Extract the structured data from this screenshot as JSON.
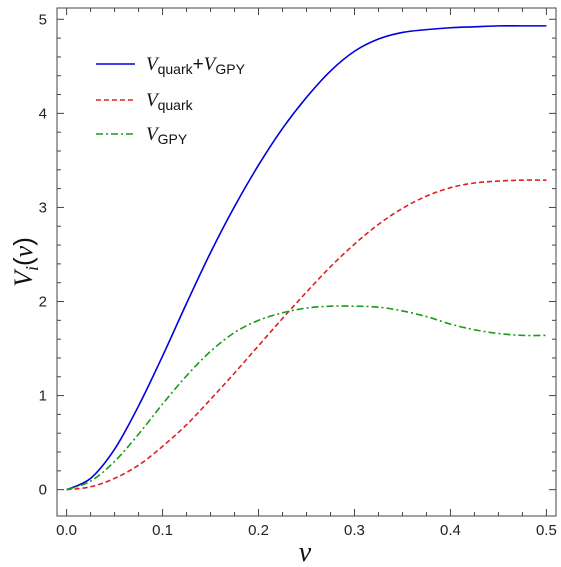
{
  "chart_data": {
    "type": "line",
    "xlabel": "v",
    "ylabel": "V_i(v)",
    "xlim": [
      -0.01,
      0.51
    ],
    "ylim": [
      -0.28,
      5.12
    ],
    "xticks": [
      "0.0",
      "0.1",
      "0.2",
      "0.3",
      "0.4",
      "0.5"
    ],
    "xtick_values": [
      0.0,
      0.1,
      0.2,
      0.3,
      0.4,
      0.5
    ],
    "yticks": [
      "0",
      "1",
      "2",
      "3",
      "4",
      "5"
    ],
    "ytick_values": [
      0,
      1,
      2,
      3,
      4,
      5
    ],
    "legend_position": "top-left",
    "grid": false,
    "x": [
      0.0,
      0.025,
      0.05,
      0.075,
      0.1,
      0.125,
      0.15,
      0.175,
      0.2,
      0.225,
      0.25,
      0.275,
      0.3,
      0.325,
      0.35,
      0.375,
      0.4,
      0.425,
      0.45,
      0.475,
      0.5
    ],
    "series": [
      {
        "label_main": "V",
        "label_sub": "quark",
        "label_plus": "+",
        "label_main2": "V",
        "label_sub2": "GPY",
        "color": "#0000dd",
        "dash": "solid",
        "values": [
          0.0,
          0.12,
          0.43,
          0.89,
          1.42,
          1.98,
          2.52,
          3.01,
          3.45,
          3.84,
          4.17,
          4.45,
          4.66,
          4.79,
          4.86,
          4.89,
          4.91,
          4.92,
          4.93,
          4.93,
          4.93
        ]
      },
      {
        "label_main": "V",
        "label_sub": "quark",
        "color": "#e02020",
        "dash": "dashed",
        "values": [
          0.0,
          0.03,
          0.12,
          0.26,
          0.46,
          0.69,
          0.96,
          1.24,
          1.53,
          1.82,
          2.1,
          2.37,
          2.61,
          2.82,
          2.99,
          3.12,
          3.21,
          3.26,
          3.28,
          3.29,
          3.29
        ]
      },
      {
        "label_main": "V",
        "label_sub": "GPY",
        "color": "#1a9a1a",
        "dash": "dashdot",
        "values": [
          0.0,
          0.09,
          0.3,
          0.59,
          0.91,
          1.21,
          1.47,
          1.67,
          1.8,
          1.88,
          1.93,
          1.95,
          1.95,
          1.94,
          1.9,
          1.84,
          1.76,
          1.7,
          1.66,
          1.64,
          1.64
        ]
      }
    ]
  }
}
